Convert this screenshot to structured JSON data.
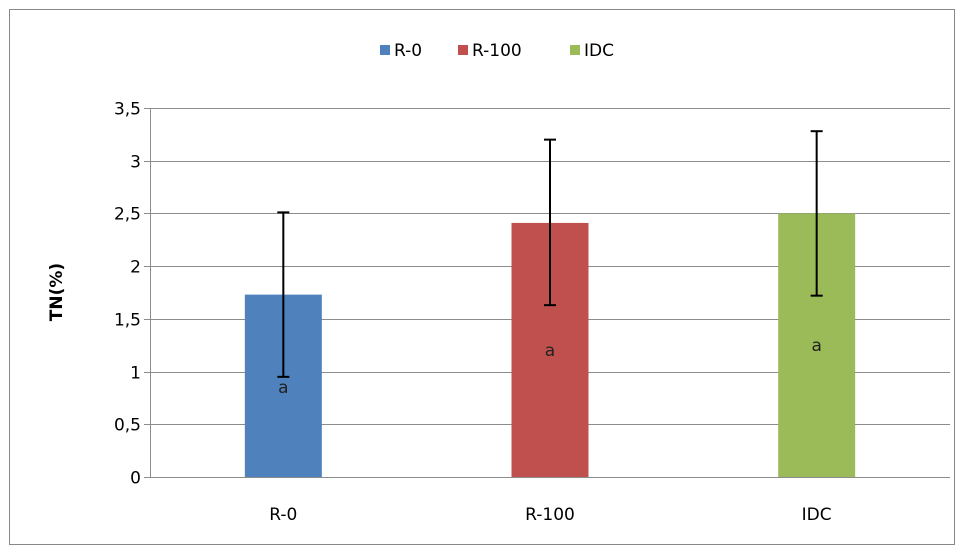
{
  "chart_data": {
    "type": "bar",
    "categories": [
      "R-0",
      "R-100",
      "IDC"
    ],
    "values": [
      1.73,
      2.41,
      2.5
    ],
    "error_low": [
      0.95,
      1.63,
      1.72
    ],
    "error_high": [
      2.51,
      3.2,
      3.28
    ],
    "bar_labels": [
      "a",
      "a",
      "a"
    ],
    "colors": [
      "#4f81bd",
      "#c0504d",
      "#9bbb59"
    ],
    "legend": [
      "R-0",
      "R-100",
      "IDC"
    ],
    "legend_position": "top",
    "ylabel": "TN(%)",
    "xlabel": "",
    "ylim": [
      0,
      3.5
    ],
    "yticks": [
      "0",
      "0,5",
      "1",
      "1,5",
      "2",
      "2,5",
      "3",
      "3,5"
    ],
    "grid": true
  }
}
